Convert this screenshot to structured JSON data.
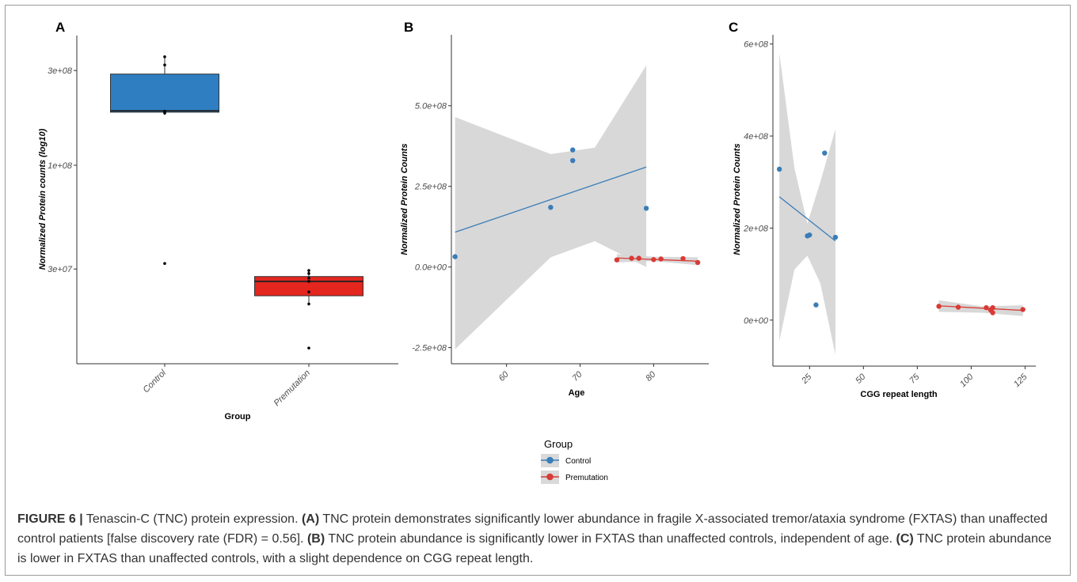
{
  "caption": {
    "label": "FIGURE 6 |",
    "intro": " Tenascin-C (TNC) protein expression. ",
    "a_tag": "(A)",
    "a_text": " TNC protein demonstrates significantly lower abundance in fragile X-associated tremor/ataxia syndrome (FXTAS) than unaffected control patients [false discovery rate (FDR) = 0.56]. ",
    "b_tag": "(B)",
    "b_text": " TNC protein abundance is significantly lower in FXTAS than unaffected controls, independent of age. ",
    "c_tag": "(C)",
    "c_text": " TNC protein abundance is lower in FXTAS than unaffected controls, with a slight dependence on CGG repeat length."
  },
  "legend": {
    "title": "Group",
    "entries": [
      {
        "label": "Control",
        "color": "#3a7db8"
      },
      {
        "label": "Premutation",
        "color": "#d93a35"
      }
    ]
  },
  "chart_data": [
    {
      "panel": "A",
      "type": "box",
      "xlabel": "Group",
      "ylabel": "Normalized Protein counts (log10)",
      "y_scale": "log10",
      "y_ticks": [
        {
          "value": 30000000,
          "label": "3e+07"
        },
        {
          "value": 100000000,
          "label": "1e+08"
        },
        {
          "value": 300000000,
          "label": "3e+08"
        }
      ],
      "categories": [
        "Control",
        "Premutation"
      ],
      "boxes": [
        {
          "group": "Control",
          "color": "#2f7ec1",
          "whisker_low": 182000000,
          "q1": 185000000,
          "median": 188000000,
          "q3": 288000000,
          "whisker_high": 352000000,
          "points": [
            352000000,
            320000000,
            187000000,
            183000000,
            32000000
          ]
        },
        {
          "group": "Premutation",
          "color": "#e4261f",
          "whisker_low": 20000000,
          "q1": 22000000,
          "median": 26000000,
          "q3": 27500000,
          "whisker_high": 29500000,
          "points": [
            29500000,
            28500000,
            27000000,
            26000000,
            23000000,
            20000000,
            12000000
          ]
        }
      ]
    },
    {
      "panel": "B",
      "type": "scatter",
      "xlabel": "Age",
      "ylabel": "Normalized Protein Counts",
      "x_ticks": [
        60,
        70,
        80
      ],
      "y_ticks": [
        {
          "value": -250000000,
          "label": "-2.5e+08"
        },
        {
          "value": 0,
          "label": "0.0e+00"
        },
        {
          "value": 250000000,
          "label": "2.5e+08"
        },
        {
          "value": 500000000,
          "label": "5.0e+08"
        }
      ],
      "series": [
        {
          "name": "Control",
          "color": "#3a7db8",
          "points": [
            [
              53,
              32000000
            ],
            [
              66,
              185000000
            ],
            [
              69,
              363000000
            ],
            [
              69,
              330000000
            ],
            [
              79,
              182000000
            ]
          ],
          "fit": [
            [
              53,
              108000000
            ],
            [
              79,
              310000000
            ]
          ],
          "band_upper": [
            [
              53,
              465000000
            ],
            [
              66,
              350000000
            ],
            [
              72,
              370000000
            ],
            [
              79,
              625000000
            ]
          ],
          "band_lower": [
            [
              53,
              -255000000
            ],
            [
              66,
              30000000
            ],
            [
              72,
              80000000
            ],
            [
              79,
              0
            ]
          ]
        },
        {
          "name": "Premutation",
          "color": "#d93a35",
          "points": [
            [
              75,
              22000000
            ],
            [
              77,
              27000000
            ],
            [
              78,
              27000000
            ],
            [
              80,
              23000000
            ],
            [
              81,
              25000000
            ],
            [
              84,
              26000000
            ],
            [
              86,
              14000000
            ]
          ],
          "fit": [
            [
              75,
              28000000
            ],
            [
              86,
              18000000
            ]
          ],
          "band_upper": [
            [
              75,
              40000000
            ],
            [
              80,
              32000000
            ],
            [
              86,
              30000000
            ]
          ],
          "band_lower": [
            [
              75,
              14000000
            ],
            [
              80,
              18000000
            ],
            [
              86,
              6000000
            ]
          ]
        }
      ]
    },
    {
      "panel": "C",
      "type": "scatter",
      "xlabel": "CGG repeat length",
      "ylabel": "Normalized Protein Counts",
      "x_ticks": [
        25,
        50,
        75,
        100,
        125
      ],
      "y_ticks": [
        {
          "value": 0,
          "label": "0e+00"
        },
        {
          "value": 200000000,
          "label": "2e+08"
        },
        {
          "value": 400000000,
          "label": "4e+08"
        },
        {
          "value": 600000000,
          "label": "6e+08"
        }
      ],
      "series": [
        {
          "name": "Control",
          "color": "#3a7db8",
          "points": [
            [
              11,
              328000000
            ],
            [
              24,
              183000000
            ],
            [
              25,
              185000000
            ],
            [
              28,
              33000000
            ],
            [
              32,
              363000000
            ],
            [
              37,
              180000000
            ]
          ],
          "fit": [
            [
              11,
              268000000
            ],
            [
              37,
              172000000
            ]
          ],
          "band_upper": [
            [
              11,
              580000000
            ],
            [
              18,
              330000000
            ],
            [
              24,
              210000000
            ],
            [
              30,
              300000000
            ],
            [
              37,
              415000000
            ]
          ],
          "band_lower": [
            [
              11,
              -45000000
            ],
            [
              18,
              110000000
            ],
            [
              24,
              140000000
            ],
            [
              30,
              80000000
            ],
            [
              37,
              -75000000
            ]
          ]
        },
        {
          "name": "Premutation",
          "color": "#d93a35",
          "points": [
            [
              85,
              30000000
            ],
            [
              94,
              28000000
            ],
            [
              107,
              27000000
            ],
            [
              109,
              22000000
            ],
            [
              110,
              27000000
            ],
            [
              110,
              16000000
            ],
            [
              124,
              23000000
            ]
          ],
          "fit": [
            [
              85,
              31000000
            ],
            [
              124,
              21000000
            ]
          ],
          "band_upper": [
            [
              85,
              43000000
            ],
            [
              105,
              30000000
            ],
            [
              124,
              32000000
            ]
          ],
          "band_lower": [
            [
              85,
              18000000
            ],
            [
              105,
              16000000
            ],
            [
              124,
              9000000
            ]
          ]
        }
      ]
    }
  ]
}
